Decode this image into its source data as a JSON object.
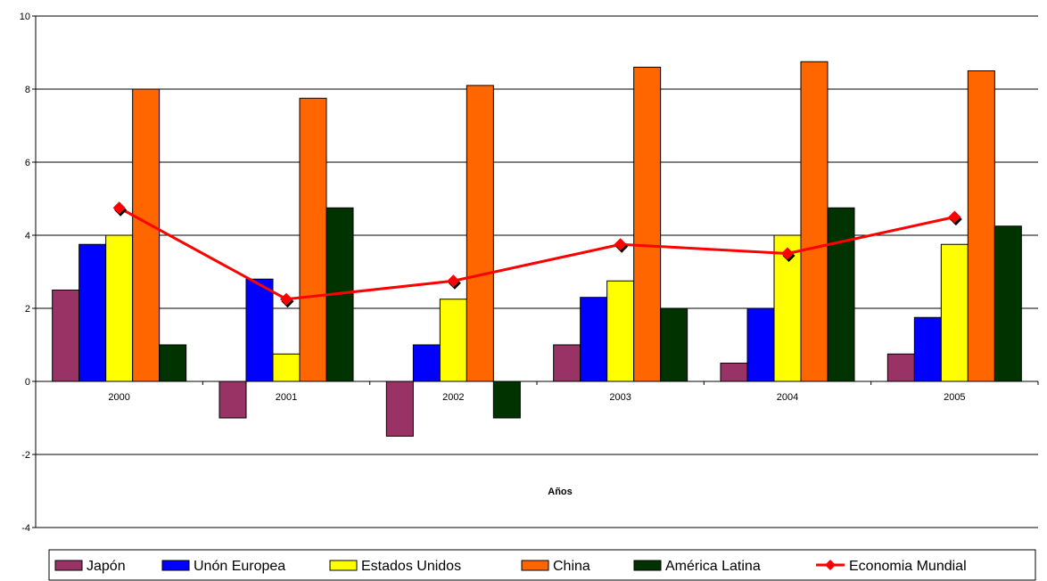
{
  "chart_data": {
    "type": "bar",
    "title": "",
    "xlabel": "Años",
    "ylabel": "",
    "ylim": [
      -4,
      10
    ],
    "yticks": [
      -4,
      -2,
      0,
      2,
      4,
      6,
      8,
      10
    ],
    "grid": true,
    "legend_position": "bottom",
    "categories": [
      "2000",
      "2001",
      "2002",
      "2003",
      "2004",
      "2005"
    ],
    "series": [
      {
        "name": "Japón",
        "type": "bar",
        "color": "#993366",
        "values": [
          2.5,
          -1.0,
          -1.5,
          1.0,
          0.5,
          0.75
        ]
      },
      {
        "name": "Unón Europea",
        "type": "bar",
        "color": "#0000ff",
        "values": [
          3.75,
          2.8,
          1.0,
          2.3,
          2.0,
          1.75
        ]
      },
      {
        "name": "Estados Unidos",
        "type": "bar",
        "color": "#ffff00",
        "values": [
          4.0,
          0.75,
          2.25,
          2.75,
          4.0,
          3.75
        ]
      },
      {
        "name": "China",
        "type": "bar",
        "color": "#ff6600",
        "values": [
          8.0,
          7.75,
          8.1,
          8.6,
          8.75,
          8.5
        ]
      },
      {
        "name": "América Latina",
        "type": "bar",
        "color": "#003300",
        "values": [
          1.0,
          4.75,
          -1.0,
          2.0,
          4.75,
          4.25
        ]
      },
      {
        "name": "Economia Mundial",
        "type": "line",
        "color": "#ff0000",
        "values": [
          4.75,
          2.25,
          2.75,
          3.75,
          3.5,
          4.5
        ]
      }
    ]
  }
}
